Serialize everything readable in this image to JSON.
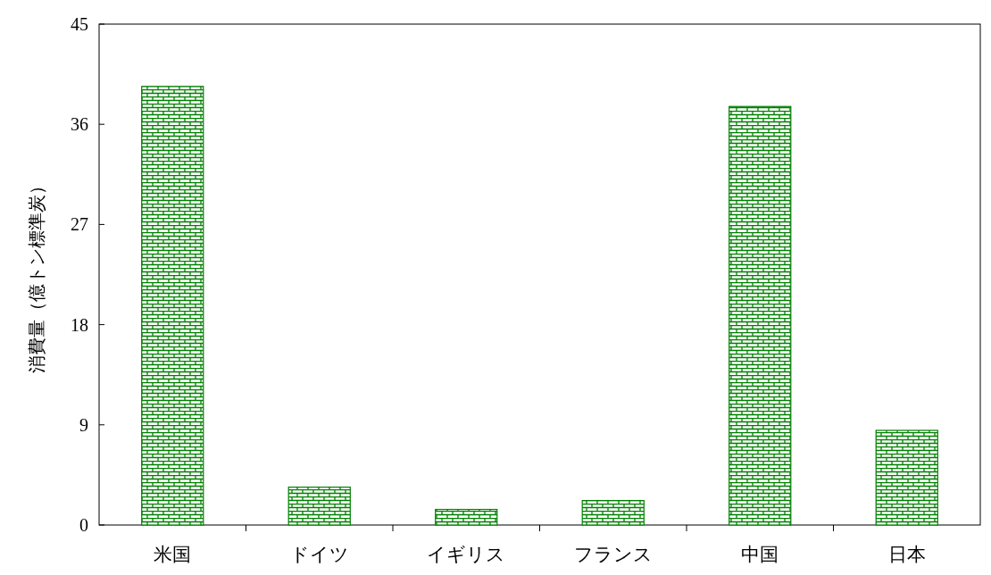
{
  "chart_data": {
    "type": "bar",
    "ylabel": "消費量（億トン標準炭）",
    "categories": [
      "米国",
      "ドイツ",
      "イギリス",
      "フランス",
      "中国",
      "日本"
    ],
    "values": [
      39.4,
      3.4,
      1.4,
      2.2,
      37.6,
      8.5
    ],
    "color": "#008000",
    "ylim": [
      0,
      45
    ],
    "yticks": [
      0,
      9,
      18,
      27,
      36,
      45
    ],
    "grid": false
  }
}
